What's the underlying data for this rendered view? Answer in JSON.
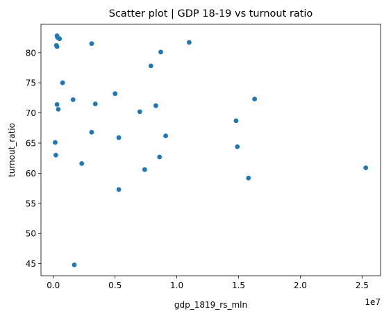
{
  "chart_data": {
    "type": "scatter",
    "title": "Scatter plot | GDP 18-19 vs turnout ratio",
    "xlabel": "gdp_1819_rs_mln",
    "ylabel": "turnout_ratio",
    "x_offset_label": "1e7",
    "x_scale": 10000000,
    "xlim": [
      -1000000,
      26500000
    ],
    "ylim": [
      43,
      84.7
    ],
    "xticks": [
      0,
      5000000,
      10000000,
      15000000,
      20000000,
      25000000
    ],
    "xtick_labels": [
      "0.0",
      "0.5",
      "1.0",
      "1.5",
      "2.0",
      "2.5"
    ],
    "yticks": [
      45,
      50,
      55,
      60,
      65,
      70,
      75,
      80
    ],
    "ytick_labels": [
      "45",
      "50",
      "55",
      "60",
      "65",
      "70",
      "75",
      "80"
    ],
    "grid": false,
    "legend": "none",
    "marker_color": "#1f77b4",
    "points": [
      {
        "x": 300000,
        "y": 82.8
      },
      {
        "x": 350000,
        "y": 82.5
      },
      {
        "x": 500000,
        "y": 82.3
      },
      {
        "x": 250000,
        "y": 81.2
      },
      {
        "x": 300000,
        "y": 81.0
      },
      {
        "x": 3100000,
        "y": 81.5
      },
      {
        "x": 11000000,
        "y": 81.7
      },
      {
        "x": 8700000,
        "y": 80.1
      },
      {
        "x": 7900000,
        "y": 77.8
      },
      {
        "x": 750000,
        "y": 75.0
      },
      {
        "x": 5000000,
        "y": 73.2
      },
      {
        "x": 1600000,
        "y": 72.2
      },
      {
        "x": 16300000,
        "y": 72.3
      },
      {
        "x": 3400000,
        "y": 71.5
      },
      {
        "x": 300000,
        "y": 71.4
      },
      {
        "x": 8300000,
        "y": 71.2
      },
      {
        "x": 400000,
        "y": 70.6
      },
      {
        "x": 7000000,
        "y": 70.2
      },
      {
        "x": 14800000,
        "y": 68.7
      },
      {
        "x": 3100000,
        "y": 66.8
      },
      {
        "x": 9100000,
        "y": 66.2
      },
      {
        "x": 5300000,
        "y": 65.9
      },
      {
        "x": 150000,
        "y": 65.1
      },
      {
        "x": 14900000,
        "y": 64.4
      },
      {
        "x": 200000,
        "y": 63.0
      },
      {
        "x": 8600000,
        "y": 62.7
      },
      {
        "x": 2300000,
        "y": 61.6
      },
      {
        "x": 25300000,
        "y": 60.9
      },
      {
        "x": 7400000,
        "y": 60.6
      },
      {
        "x": 15800000,
        "y": 59.2
      },
      {
        "x": 5300000,
        "y": 57.3
      },
      {
        "x": 1700000,
        "y": 44.8
      }
    ]
  }
}
